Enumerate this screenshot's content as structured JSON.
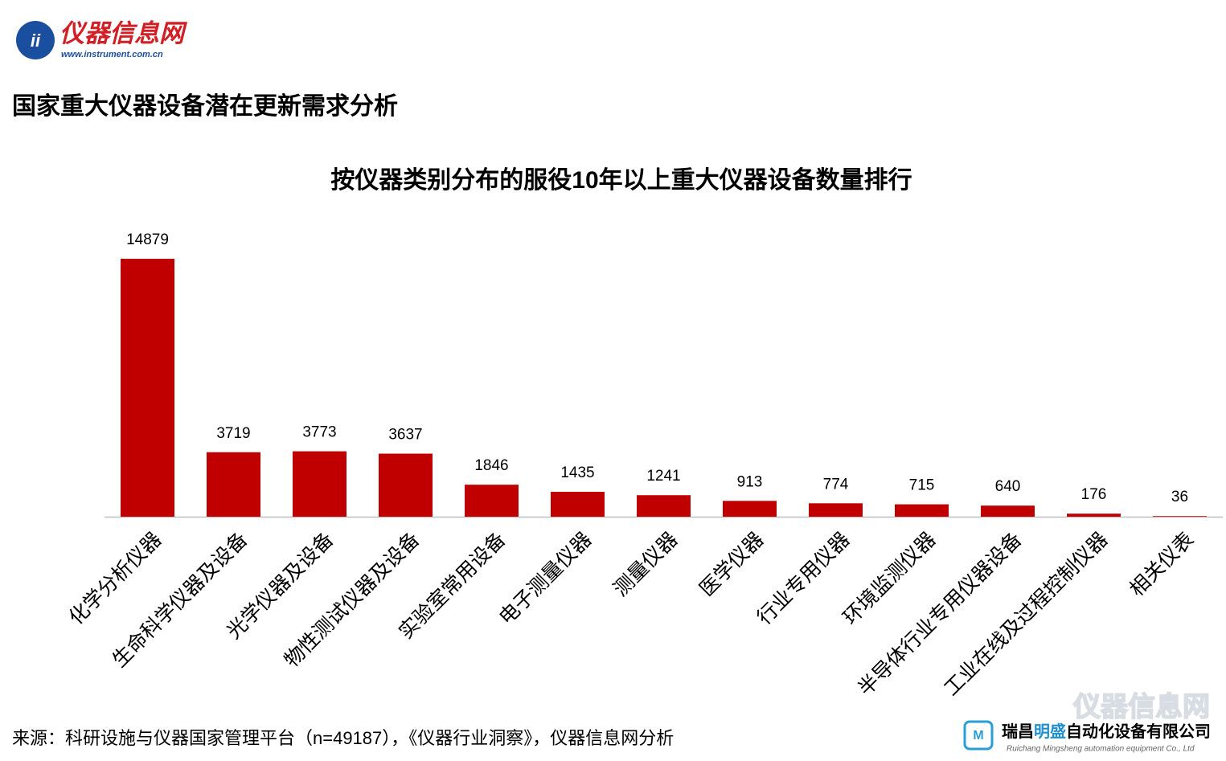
{
  "logo": {
    "name": "仪器信息网",
    "url": "www.instrument.com.cn"
  },
  "heading": "国家重大仪器设备潜在更新需求分析",
  "chart_data": {
    "type": "bar",
    "title": "按仪器类别分布的服役10年以上重大仪器设备数量排行",
    "categories": [
      "化学分析仪器",
      "生命科学仪器及设备",
      "光学仪器及设备",
      "物性测试仪器及设备",
      "实验室常用设备",
      "电子测量仪器",
      "测量仪器",
      "医学仪器",
      "行业专用仪器",
      "环境监测仪器",
      "半导体行业专用仪器设备",
      "工业在线及过程控制仪器",
      "相关仪表"
    ],
    "values": [
      14879,
      3719,
      3773,
      3637,
      1846,
      1435,
      1241,
      913,
      774,
      715,
      640,
      176,
      36
    ],
    "color": "#c00000"
  },
  "source": "来源：科研设施与仪器国家管理平台（n=49187），《仪器行业洞察》，仪器信息网分析",
  "watermark": "仪器信息网",
  "footer_logo": {
    "name_parts": [
      "瑞昌",
      "明盛",
      "自动化设备有限公司"
    ],
    "subtitle": "Ruichang Mingsheng automation equipment Co., Ltd"
  }
}
